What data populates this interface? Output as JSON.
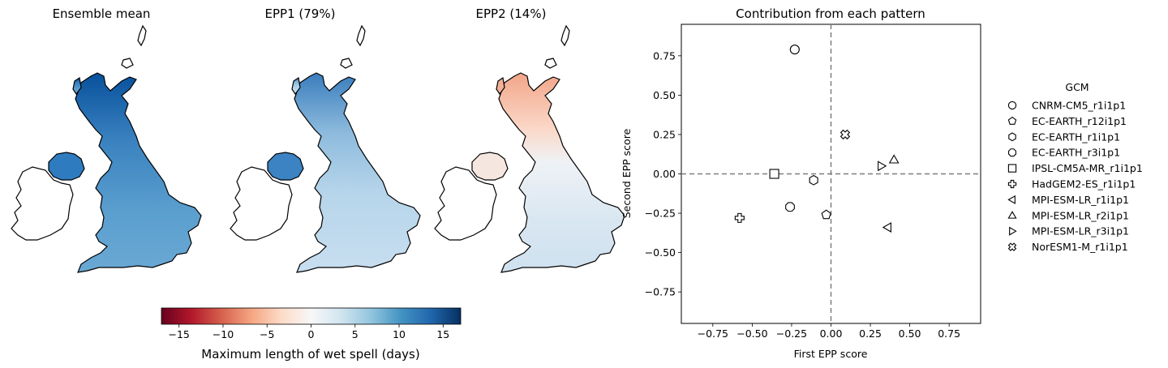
{
  "maps": {
    "titles": [
      "Ensemble mean",
      "EPP1 (79%)",
      "EPP2 (14%)"
    ]
  },
  "colorbar": {
    "label": "Maximum length of wet spell (days)",
    "ticks": [
      -15,
      -10,
      -5,
      0,
      5,
      10,
      15
    ],
    "tick_labels": [
      "−15",
      "−10",
      "−5",
      "0",
      "5",
      "10",
      "15"
    ],
    "range": [
      -17,
      17
    ],
    "colormap": "RdBu",
    "colors": [
      "#67001f",
      "#b2182b",
      "#d6604d",
      "#f4a582",
      "#fddbc7",
      "#f7f7f7",
      "#d1e5f0",
      "#92c5de",
      "#4393c3",
      "#2166ac",
      "#053061"
    ]
  },
  "chart_data": {
    "type": "scatter",
    "title": "Contribution from each pattern",
    "xlabel": "First EPP score",
    "ylabel": "Second EPP score",
    "xlim": [
      -0.95,
      0.95
    ],
    "ylim": [
      -0.95,
      0.95
    ],
    "xticks": [
      -0.75,
      -0.5,
      -0.25,
      0.0,
      0.25,
      0.5,
      0.75
    ],
    "yticks": [
      -0.75,
      -0.5,
      -0.25,
      0.0,
      0.25,
      0.5,
      0.75
    ],
    "xtick_labels": [
      "−0.75",
      "−0.50",
      "−0.25",
      "0.00",
      "0.25",
      "0.50",
      "0.75"
    ],
    "ytick_labels": [
      "−0.75",
      "−0.50",
      "−0.25",
      "0.00",
      "0.25",
      "0.50",
      "0.75"
    ],
    "grid": false,
    "reference_lines": {
      "x": 0,
      "y": 0,
      "style": "dashed"
    },
    "legend": {
      "title": "GCM",
      "placement": "outside-right"
    },
    "series": [
      {
        "name": "CNRM-CM5_r1i1p1",
        "marker": "circle",
        "x": -0.23,
        "y": 0.79
      },
      {
        "name": "EC-EARTH_r12i1p1",
        "marker": "pentagon",
        "x": -0.03,
        "y": -0.26
      },
      {
        "name": "EC-EARTH_r1i1p1",
        "marker": "hexagon",
        "x": -0.11,
        "y": -0.04
      },
      {
        "name": "EC-EARTH_r3i1p1",
        "marker": "octagon",
        "x": -0.26,
        "y": -0.21
      },
      {
        "name": "IPSL-CM5A-MR_r1i1p1",
        "marker": "square",
        "x": -0.36,
        "y": 0.0
      },
      {
        "name": "HadGEM2-ES_r1i1p1",
        "marker": "plus",
        "x": -0.58,
        "y": -0.28
      },
      {
        "name": "MPI-ESM-LR_r1i1p1",
        "marker": "triangle-left",
        "x": 0.36,
        "y": -0.34
      },
      {
        "name": "MPI-ESM-LR_r2i1p1",
        "marker": "triangle-up",
        "x": 0.4,
        "y": 0.09
      },
      {
        "name": "MPI-ESM-LR_r3i1p1",
        "marker": "triangle-right",
        "x": 0.32,
        "y": 0.05
      },
      {
        "name": "NorESM1-M_r1i1p1",
        "marker": "x-filled",
        "x": 0.09,
        "y": 0.25
      }
    ]
  }
}
